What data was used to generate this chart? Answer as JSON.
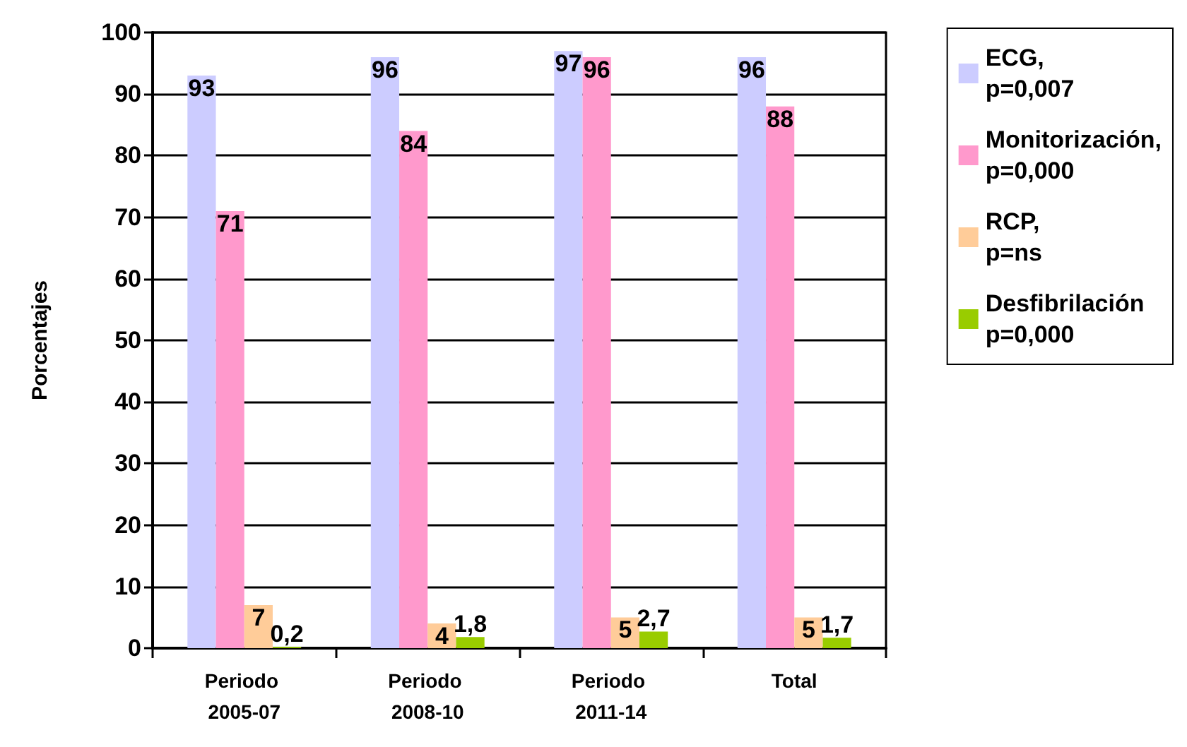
{
  "chart_data": {
    "type": "bar",
    "ylabel": "Porcentajes",
    "categories": [
      "Periodo 2005-07",
      "Periodo 2008-10",
      "Periodo 2011-14",
      "Total"
    ],
    "series": [
      {
        "name": "ECG, p=0,007",
        "color": "#ccccff",
        "values": [
          93,
          96,
          97,
          96
        ],
        "value_labels": [
          "93",
          "96",
          "97",
          "96"
        ]
      },
      {
        "name": "Monitorización, p=0,000",
        "color": "#ff99cc",
        "values": [
          71,
          84,
          96,
          88
        ],
        "value_labels": [
          "71",
          "84",
          "96",
          "88"
        ]
      },
      {
        "name": "RCP, p=ns",
        "color": "#ffcc99",
        "values": [
          7,
          4,
          5,
          5
        ],
        "value_labels": [
          "7",
          "4",
          "5",
          "5"
        ]
      },
      {
        "name": "Desfibrilación p=0,000",
        "color": "#99cc00",
        "values": [
          0.2,
          1.8,
          2.7,
          1.7
        ],
        "value_labels": [
          "0,2",
          "1,8",
          "2,7",
          "1,7"
        ]
      }
    ],
    "ylim": [
      0,
      100
    ],
    "yticks": [
      0,
      10,
      20,
      30,
      40,
      50,
      60,
      70,
      80,
      90,
      100
    ],
    "grid": "y",
    "legend": "right"
  }
}
